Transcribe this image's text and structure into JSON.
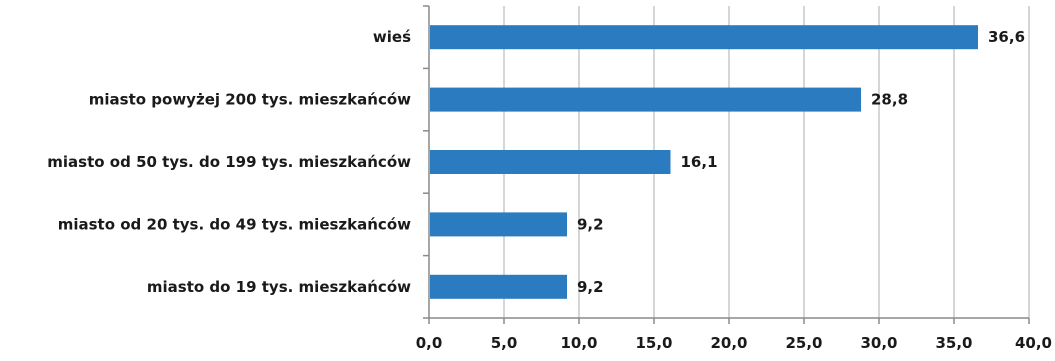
{
  "chart_data": {
    "type": "bar",
    "orientation": "horizontal",
    "categories": [
      "wieś",
      "miasto powyżej 200 tys. mieszkańców",
      "miasto od 50 tys. do 199 tys. mieszkańców",
      "miasto od 20 tys. do 49 tys. mieszkańców",
      "miasto do 19 tys. mieszkańców"
    ],
    "values": [
      36.6,
      28.8,
      16.1,
      9.2,
      9.2
    ],
    "data_labels": [
      "36,6",
      "28,8",
      "16,1",
      "9,2",
      "9,2"
    ],
    "xlim": [
      0,
      40
    ],
    "x_ticks": [
      0,
      5,
      10,
      15,
      20,
      25,
      30,
      35,
      40
    ],
    "x_tick_labels": [
      "0,0",
      "5,0",
      "10,0",
      "15,0",
      "20,0",
      "25,0",
      "30,0",
      "35,0",
      "40,0"
    ],
    "grid": "vertical",
    "legend": "none",
    "bar_color": "#2a7bbf",
    "grid_color": "#c8c8c8",
    "axis_color": "#8a8a8a"
  }
}
